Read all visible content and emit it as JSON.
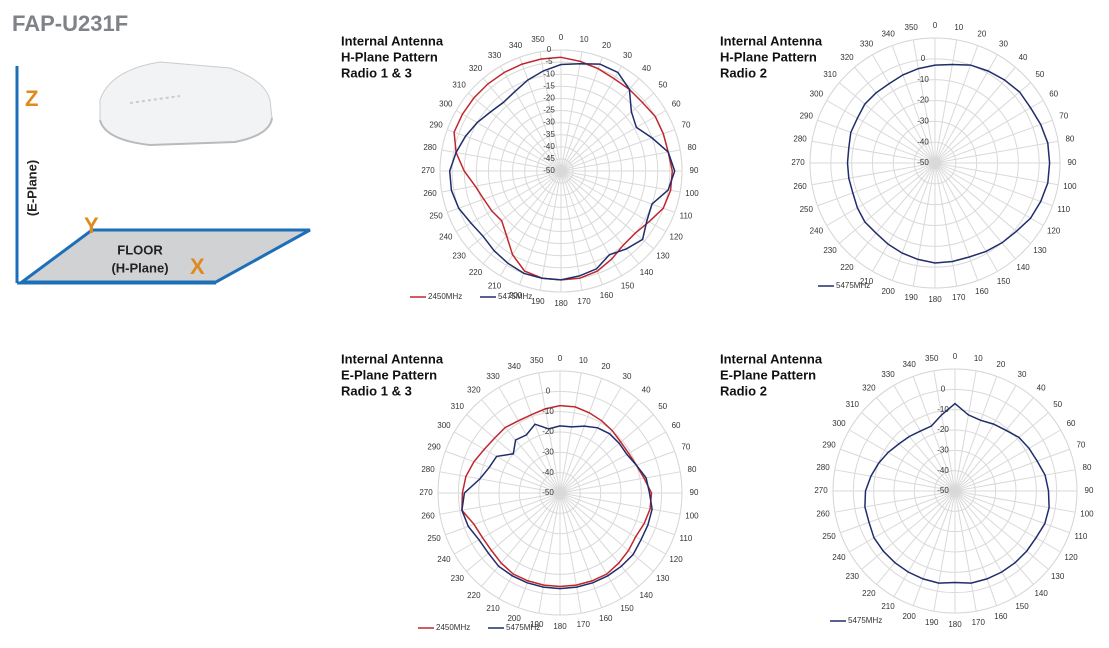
{
  "header": {
    "title": "FAP-U231F"
  },
  "diagram": {
    "z": "Z",
    "e_plane": "(E-Plane)",
    "y": "Y",
    "floor": "FLOOR",
    "h_plane": "(H-Plane)",
    "x": "X"
  },
  "chart_data": [
    {
      "type": "polar",
      "title": [
        "Internal Antenna",
        "H-Plane Pattern",
        "Radio 1 & 3"
      ],
      "angles": [
        0,
        10,
        20,
        30,
        40,
        50,
        60,
        70,
        80,
        90,
        100,
        110,
        120,
        130,
        140,
        150,
        160,
        170,
        180,
        190,
        200,
        210,
        220,
        230,
        240,
        250,
        260,
        270,
        280,
        290,
        300,
        310,
        320,
        330,
        340,
        350
      ],
      "rlim": [
        -50,
        0
      ],
      "rticks": [
        0,
        -5,
        -10,
        -15,
        -20,
        -25,
        -30,
        -35,
        -40,
        -45,
        -50
      ],
      "grid": true,
      "legend": "bottom-left",
      "series": [
        {
          "name": "2450MHz",
          "color": "#c0272d",
          "values": [
            -3,
            -4,
            -5,
            -6,
            -6,
            -6,
            -5,
            -5,
            -5,
            -4,
            -4,
            -5,
            -8,
            -10,
            -10,
            -8,
            -6,
            -5,
            -5,
            -5,
            -6,
            -10,
            -15,
            -18,
            -17,
            -16,
            -14,
            -10,
            -6,
            -3,
            -3,
            -3,
            -3,
            -3,
            -3,
            -3
          ]
        },
        {
          "name": "5475MHz",
          "color": "#1f2d6b",
          "values": [
            -6,
            -5,
            -3,
            -3,
            -6,
            -12,
            -14,
            -10,
            -5,
            -3,
            -5,
            -10,
            -9,
            -6,
            -8,
            -10,
            -7,
            -6,
            -5,
            -5,
            -5,
            -6,
            -7,
            -8,
            -7,
            -5,
            -4,
            -4,
            -6,
            -8,
            -10,
            -12,
            -13,
            -12,
            -10,
            -8
          ]
        }
      ]
    },
    {
      "type": "polar",
      "title": [
        "Internal Antenna",
        "H-Plane Pattern",
        "Radio 2"
      ],
      "angles": [
        0,
        10,
        20,
        30,
        40,
        50,
        60,
        70,
        80,
        90,
        100,
        110,
        120,
        130,
        140,
        150,
        160,
        170,
        180,
        190,
        200,
        210,
        220,
        230,
        240,
        250,
        260,
        270,
        280,
        290,
        300,
        310,
        320,
        330,
        340,
        350
      ],
      "rlim": [
        -50,
        10
      ],
      "rticks": [
        0,
        -10,
        -20,
        -30,
        -40,
        -50
      ],
      "grid": true,
      "legend": "bottom-left",
      "series": [
        {
          "name": "5475MHz",
          "color": "#1f2d6b",
          "values": [
            -3,
            -2,
            0,
            1,
            2,
            3,
            3,
            4,
            5,
            5,
            5,
            4,
            3,
            1,
            0,
            -1,
            -2,
            -2,
            -2,
            -3,
            -4,
            -5,
            -6,
            -6,
            -7,
            -8,
            -8,
            -8,
            -8,
            -7,
            -7,
            -6,
            -6,
            -6,
            -5,
            -4
          ]
        }
      ]
    },
    {
      "type": "polar",
      "title": [
        "Internal Antenna",
        "E-Plane Pattern",
        "Radio 1 & 3"
      ],
      "angles": [
        0,
        10,
        20,
        30,
        40,
        50,
        60,
        70,
        80,
        90,
        100,
        110,
        120,
        130,
        140,
        150,
        160,
        170,
        180,
        190,
        200,
        210,
        220,
        230,
        240,
        250,
        260,
        270,
        280,
        290,
        300,
        310,
        320,
        330,
        340,
        350
      ],
      "rlim": [
        -50,
        10
      ],
      "rticks": [
        0,
        -10,
        -20,
        -30,
        -40,
        -50
      ],
      "grid": true,
      "legend": "bottom-left",
      "series": [
        {
          "name": "2450MHz",
          "color": "#c0272d",
          "values": [
            -7,
            -7,
            -8,
            -9,
            -10,
            -11,
            -11,
            -10,
            -8,
            -5,
            -5,
            -6,
            -7,
            -6,
            -5,
            -4,
            -4,
            -4,
            -4,
            -4,
            -4,
            -4,
            -5,
            -6,
            -6,
            -5,
            -1,
            -2,
            -3,
            -5,
            -7,
            -8,
            -8,
            -9,
            -9,
            -8
          ]
        },
        {
          "name": "5475MHz",
          "color": "#1f2d6b",
          "values": [
            -17,
            -17,
            -15,
            -13,
            -12,
            -12,
            -12,
            -10,
            -7,
            -6,
            -4,
            -4,
            -4,
            -3,
            -3,
            -3,
            -3,
            -3,
            -3,
            -3,
            -3,
            -3,
            -3,
            -4,
            -4,
            -2,
            -1,
            -3,
            -10,
            -13,
            -14,
            -20,
            -16,
            -17,
            -14,
            -18
          ]
        }
      ]
    },
    {
      "type": "polar",
      "title": [
        "Internal Antenna",
        "E-Plane Pattern",
        "Radio 2"
      ],
      "angles": [
        0,
        10,
        20,
        30,
        40,
        50,
        60,
        70,
        80,
        90,
        100,
        110,
        120,
        130,
        140,
        150,
        160,
        170,
        180,
        190,
        200,
        210,
        220,
        230,
        240,
        250,
        260,
        270,
        280,
        290,
        300,
        310,
        320,
        330,
        340,
        350
      ],
      "rlim": [
        -50,
        10
      ],
      "rticks": [
        0,
        -10,
        -20,
        -30,
        -40,
        -50
      ],
      "grid": true,
      "legend": "bottom-left",
      "series": [
        {
          "name": "5475MHz",
          "color": "#1f2d6b",
          "values": [
            -7,
            -12,
            -13,
            -12,
            -11,
            -9,
            -8,
            -7,
            -5,
            -4,
            -3,
            -3,
            -4,
            -4,
            -4,
            -4,
            -4,
            -4,
            -5,
            -4,
            -4,
            -4,
            -4,
            -4,
            -4,
            -5,
            -5,
            -6,
            -8,
            -10,
            -12,
            -14,
            -15,
            -16,
            -16,
            -12
          ]
        }
      ]
    }
  ]
}
